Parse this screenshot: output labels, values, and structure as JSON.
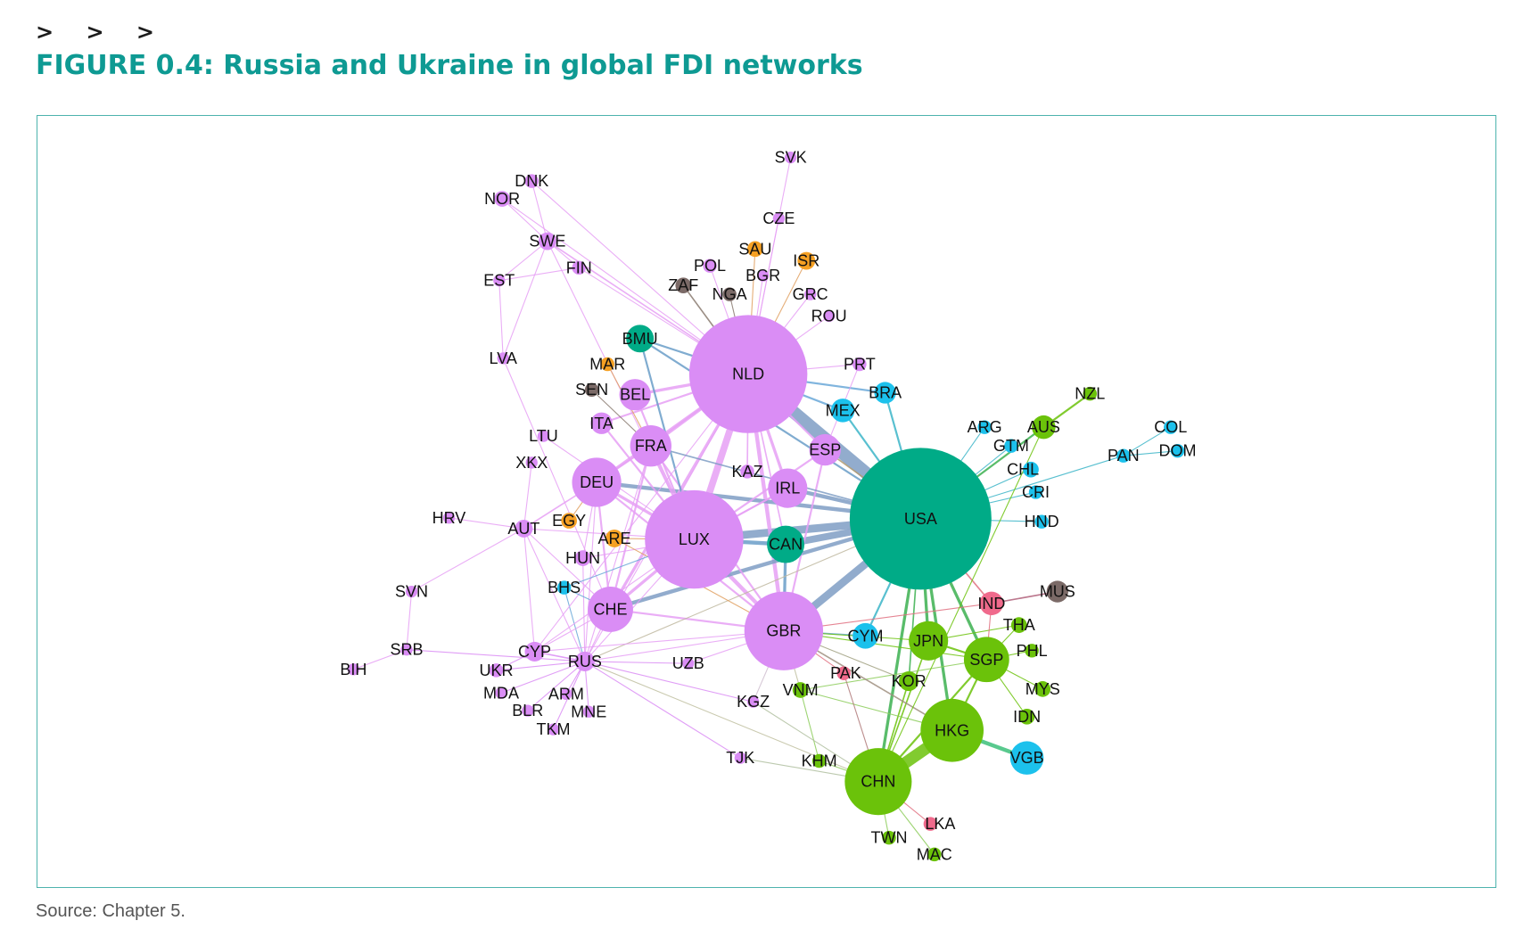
{
  "header": {
    "chevrons": "> > >",
    "title": "FIGURE 0.4: Russia and Ukraine in global FDI networks"
  },
  "footer": {
    "source": "Source: Chapter 5."
  },
  "colors": {
    "europe": "#da8df5",
    "north_america": "#00ab87",
    "asia_pacific": "#6bc20a",
    "americas_other": "#1cc1ec",
    "middle_east_africa": "#f5a023",
    "africa_other": "#7b6a67",
    "south_asia": "#f06a8c"
  },
  "network": {
    "nodes": [
      {
        "id": "NLD",
        "group": "europe"
      },
      {
        "id": "USA",
        "group": "north_america"
      },
      {
        "id": "LUX",
        "group": "europe"
      },
      {
        "id": "GBR",
        "group": "europe"
      },
      {
        "id": "CHN",
        "group": "asia_pacific"
      },
      {
        "id": "HKG",
        "group": "asia_pacific"
      },
      {
        "id": "DEU",
        "group": "europe"
      },
      {
        "id": "FRA",
        "group": "europe"
      },
      {
        "id": "IRL",
        "group": "europe"
      },
      {
        "id": "CHE",
        "group": "europe"
      },
      {
        "id": "CAN",
        "group": "north_america"
      },
      {
        "id": "SGP",
        "group": "asia_pacific"
      },
      {
        "id": "JPN",
        "group": "asia_pacific"
      },
      {
        "id": "BEL",
        "group": "europe"
      },
      {
        "id": "ESP",
        "group": "europe"
      },
      {
        "id": "VGB",
        "group": "americas_other"
      },
      {
        "id": "CYM",
        "group": "americas_other"
      },
      {
        "id": "BMU",
        "group": "north_america"
      },
      {
        "id": "MEX",
        "group": "americas_other"
      },
      {
        "id": "BRA",
        "group": "americas_other"
      },
      {
        "id": "AUS",
        "group": "asia_pacific"
      },
      {
        "id": "IND",
        "group": "south_asia"
      },
      {
        "id": "MUS",
        "group": "africa_other"
      },
      {
        "id": "ITA",
        "group": "europe"
      },
      {
        "id": "KOR",
        "group": "asia_pacific"
      },
      {
        "id": "THA",
        "group": "asia_pacific"
      },
      {
        "id": "MYS",
        "group": "asia_pacific"
      },
      {
        "id": "IDN",
        "group": "asia_pacific"
      },
      {
        "id": "PHL",
        "group": "asia_pacific"
      },
      {
        "id": "VNM",
        "group": "asia_pacific"
      },
      {
        "id": "KHM",
        "group": "asia_pacific"
      },
      {
        "id": "TWN",
        "group": "asia_pacific"
      },
      {
        "id": "MAC",
        "group": "asia_pacific"
      },
      {
        "id": "NZL",
        "group": "asia_pacific"
      },
      {
        "id": "LKA",
        "group": "south_asia"
      },
      {
        "id": "PAK",
        "group": "south_asia"
      },
      {
        "id": "KAZ",
        "group": "europe"
      },
      {
        "id": "RUS",
        "group": "europe"
      },
      {
        "id": "CYP",
        "group": "europe"
      },
      {
        "id": "AUT",
        "group": "europe"
      },
      {
        "id": "HUN",
        "group": "europe"
      },
      {
        "id": "SWE",
        "group": "europe"
      },
      {
        "id": "FIN",
        "group": "europe"
      },
      {
        "id": "NOR",
        "group": "europe"
      },
      {
        "id": "DNK",
        "group": "europe"
      },
      {
        "id": "EST",
        "group": "europe"
      },
      {
        "id": "LVA",
        "group": "europe"
      },
      {
        "id": "LTU",
        "group": "europe"
      },
      {
        "id": "XKX",
        "group": "europe"
      },
      {
        "id": "HRV",
        "group": "europe"
      },
      {
        "id": "SVN",
        "group": "europe"
      },
      {
        "id": "SRB",
        "group": "europe"
      },
      {
        "id": "BIH",
        "group": "europe"
      },
      {
        "id": "UKR",
        "group": "europe"
      },
      {
        "id": "MDA",
        "group": "europe"
      },
      {
        "id": "BLR",
        "group": "europe"
      },
      {
        "id": "ARM",
        "group": "europe"
      },
      {
        "id": "TKM",
        "group": "europe"
      },
      {
        "id": "MNE",
        "group": "europe"
      },
      {
        "id": "UZB",
        "group": "europe"
      },
      {
        "id": "KGZ",
        "group": "europe"
      },
      {
        "id": "TJK",
        "group": "europe"
      },
      {
        "id": "POL",
        "group": "europe"
      },
      {
        "id": "BGR",
        "group": "europe"
      },
      {
        "id": "CZE",
        "group": "europe"
      },
      {
        "id": "SVK",
        "group": "europe"
      },
      {
        "id": "GRC",
        "group": "europe"
      },
      {
        "id": "ROU",
        "group": "europe"
      },
      {
        "id": "PRT",
        "group": "europe"
      },
      {
        "id": "SAU",
        "group": "middle_east_africa"
      },
      {
        "id": "ISR",
        "group": "middle_east_africa"
      },
      {
        "id": "MAR",
        "group": "middle_east_africa"
      },
      {
        "id": "EGY",
        "group": "middle_east_africa"
      },
      {
        "id": "ARE",
        "group": "middle_east_africa"
      },
      {
        "id": "ZAF",
        "group": "africa_other"
      },
      {
        "id": "NGA",
        "group": "africa_other"
      },
      {
        "id": "SEN",
        "group": "africa_other"
      },
      {
        "id": "BHS",
        "group": "americas_other"
      },
      {
        "id": "ARG",
        "group": "americas_other"
      },
      {
        "id": "GTM",
        "group": "americas_other"
      },
      {
        "id": "CHL",
        "group": "americas_other"
      },
      {
        "id": "CRI",
        "group": "americas_other"
      },
      {
        "id": "HND",
        "group": "americas_other"
      },
      {
        "id": "PAN",
        "group": "americas_other"
      },
      {
        "id": "COL",
        "group": "americas_other"
      },
      {
        "id": "DOM",
        "group": "americas_other"
      }
    ]
  }
}
